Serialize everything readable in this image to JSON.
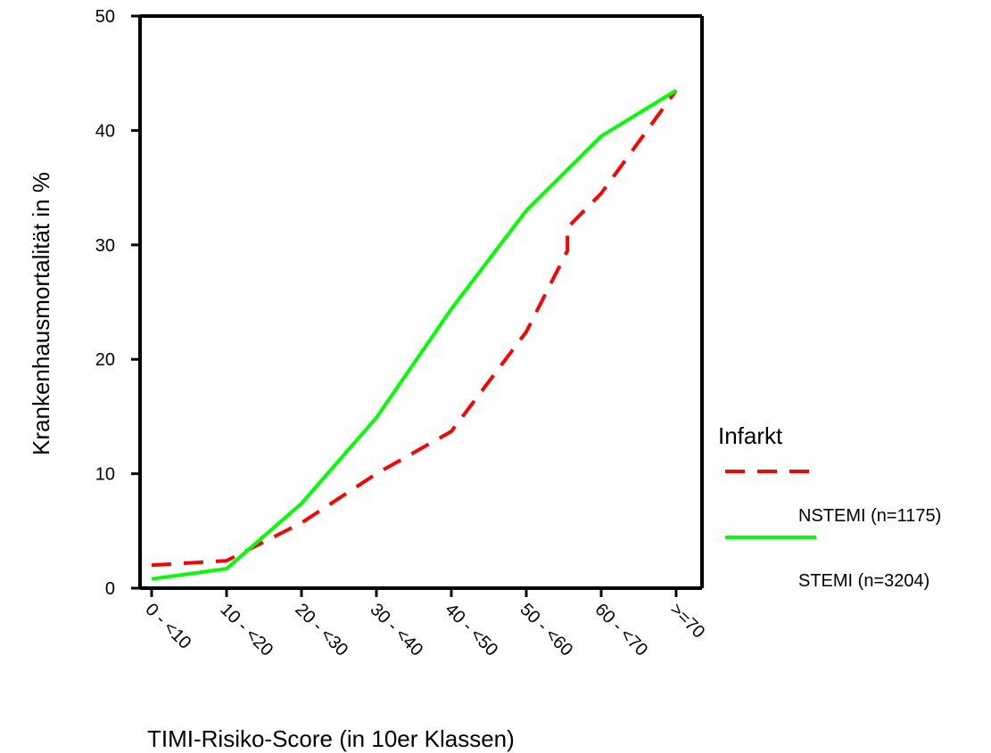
{
  "chart_data": {
    "type": "line",
    "title": "",
    "xlabel": "TIMI-Risiko-Score (in 10er Klassen)",
    "ylabel": "Krankenhausmortalität in %",
    "categories": [
      "0 - <10",
      "10 - <20",
      "20 - <30",
      "30 - <40",
      "40 - <50",
      "50 - <60",
      "60 - <70",
      ">=70"
    ],
    "y_ticks": [
      "0",
      "10",
      "20",
      "30",
      "40",
      "50"
    ],
    "ylim": [
      0,
      50
    ],
    "grid": false,
    "legend": {
      "title": "Infarkt",
      "placement": "right",
      "entries": [
        "NSTEMI (n=1175)",
        "STEMI (n=3204)"
      ]
    },
    "series": [
      {
        "name": "NSTEMI (n=1175)",
        "style": "dashed",
        "color": "#ff0000",
        "points": [
          [
            0,
            2
          ],
          [
            1,
            2.4
          ],
          [
            2,
            5.7
          ],
          [
            3,
            10
          ],
          [
            4,
            13.7
          ],
          [
            5,
            22.4
          ],
          [
            5.55,
            29.5
          ],
          [
            5.55,
            31.5
          ],
          [
            6,
            34.5
          ],
          [
            7,
            43.5
          ]
        ]
      },
      {
        "name": "STEMI (n=3204)",
        "style": "solid",
        "color": "#00ff00",
        "points": [
          [
            0,
            0.8
          ],
          [
            1,
            1.7
          ],
          [
            2,
            7.4
          ],
          [
            3,
            14.9
          ],
          [
            4,
            24.4
          ],
          [
            5,
            33
          ],
          [
            6,
            39.5
          ],
          [
            7,
            43.5
          ]
        ]
      }
    ]
  }
}
